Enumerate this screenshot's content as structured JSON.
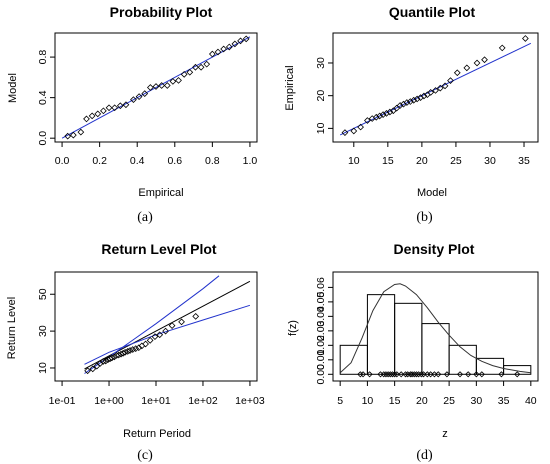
{
  "chart_data": [
    {
      "type": "scatter",
      "panel": "(a)",
      "title": "Probability Plot",
      "xlabel": "Empirical",
      "ylabel": "Model",
      "xlim": [
        0,
        1
      ],
      "ylim": [
        0,
        1
      ],
      "xticks": [
        0.0,
        0.2,
        0.4,
        0.6,
        0.8,
        1.0
      ],
      "xtick_labels": [
        "0.0",
        "0.2",
        "0.4",
        "0.6",
        "0.8",
        "1.0"
      ],
      "yticks": [
        0.0,
        0.4,
        0.8
      ],
      "ytick_labels": [
        "0.0",
        "0.4",
        "0.8"
      ],
      "reference_line": [
        [
          0,
          0
        ],
        [
          1,
          1
        ]
      ],
      "line_color": "#2233cc",
      "points": [
        [
          0.03,
          0.02
        ],
        [
          0.06,
          0.03
        ],
        [
          0.1,
          0.06
        ],
        [
          0.13,
          0.19
        ],
        [
          0.16,
          0.22
        ],
        [
          0.19,
          0.24
        ],
        [
          0.22,
          0.27
        ],
        [
          0.25,
          0.3
        ],
        [
          0.28,
          0.3
        ],
        [
          0.31,
          0.32
        ],
        [
          0.34,
          0.33
        ],
        [
          0.38,
          0.38
        ],
        [
          0.41,
          0.41
        ],
        [
          0.44,
          0.44
        ],
        [
          0.47,
          0.5
        ],
        [
          0.5,
          0.51
        ],
        [
          0.53,
          0.52
        ],
        [
          0.56,
          0.52
        ],
        [
          0.59,
          0.56
        ],
        [
          0.62,
          0.57
        ],
        [
          0.65,
          0.63
        ],
        [
          0.68,
          0.65
        ],
        [
          0.71,
          0.7
        ],
        [
          0.74,
          0.7
        ],
        [
          0.77,
          0.73
        ],
        [
          0.8,
          0.83
        ],
        [
          0.83,
          0.85
        ],
        [
          0.86,
          0.88
        ],
        [
          0.89,
          0.9
        ],
        [
          0.92,
          0.93
        ],
        [
          0.95,
          0.96
        ],
        [
          0.98,
          0.98
        ]
      ]
    },
    {
      "type": "scatter",
      "panel": "(b)",
      "title": "Quantile Plot",
      "xlabel": "Model",
      "ylabel": "Empirical",
      "xlim": [
        8,
        36
      ],
      "ylim": [
        7,
        38
      ],
      "xticks": [
        10,
        15,
        20,
        25,
        30,
        35
      ],
      "xtick_labels": [
        "10",
        "15",
        "20",
        "25",
        "30",
        "35"
      ],
      "yticks": [
        10,
        20,
        30
      ],
      "ytick_labels": [
        "10",
        "20",
        "30"
      ],
      "reference_line": [
        [
          8,
          8
        ],
        [
          36,
          36
        ]
      ],
      "line_color": "#2233cc",
      "points": [
        [
          8.7,
          8.7
        ],
        [
          10,
          9.2
        ],
        [
          11,
          10.4
        ],
        [
          12,
          12.4
        ],
        [
          12.7,
          13
        ],
        [
          13.3,
          13.4
        ],
        [
          13.8,
          13.8
        ],
        [
          14.3,
          14.2
        ],
        [
          14.8,
          14.6
        ],
        [
          15.3,
          15
        ],
        [
          15.8,
          15.4
        ],
        [
          16.3,
          16.2
        ],
        [
          16.8,
          17
        ],
        [
          17.3,
          17.4
        ],
        [
          17.8,
          17.9
        ],
        [
          18.3,
          18.2
        ],
        [
          18.8,
          18.6
        ],
        [
          19.3,
          19
        ],
        [
          19.8,
          19.4
        ],
        [
          20.3,
          19.9
        ],
        [
          20.8,
          20.3
        ],
        [
          21.3,
          21
        ],
        [
          22,
          21.6
        ],
        [
          22.7,
          22.3
        ],
        [
          23.4,
          23
        ],
        [
          24.2,
          24.6
        ],
        [
          25.2,
          27
        ],
        [
          26.6,
          28.5
        ],
        [
          28.1,
          30
        ],
        [
          29.2,
          31
        ],
        [
          31.8,
          34.6
        ],
        [
          35.2,
          37.5
        ]
      ]
    },
    {
      "type": "line",
      "panel": "(c)",
      "title": "Return Level Plot",
      "xlabel": "Return Period",
      "ylabel": "Return Level",
      "xscale": "log",
      "xlim": [
        0.1,
        1000
      ],
      "ylim": [
        5,
        60
      ],
      "xticks": [
        0.1,
        1,
        10,
        100,
        1000
      ],
      "xtick_labels": [
        "1e-01",
        "1e+00",
        "1e+01",
        "1e+02",
        "1e+03"
      ],
      "yticks": [
        10,
        30,
        50
      ],
      "ytick_labels": [
        "10",
        "30",
        "50"
      ],
      "series": [
        {
          "role": "estimate",
          "color": "#000000",
          "x": [
            0.3,
            1000
          ],
          "y": [
            9.5,
            57
          ]
        },
        {
          "role": "upper confidence bound",
          "color": "#2233cc",
          "x": [
            0.3,
            1,
            10,
            100,
            220
          ],
          "y": [
            7,
            16,
            34,
            53,
            60
          ]
        },
        {
          "role": "lower confidence bound",
          "color": "#2233cc",
          "x": [
            0.3,
            1,
            10,
            100,
            1000
          ],
          "y": [
            12,
            18.5,
            28,
            36,
            44
          ]
        }
      ],
      "points": [
        [
          0.35,
          8.5
        ],
        [
          0.45,
          9.5
        ],
        [
          0.55,
          11
        ],
        [
          0.65,
          12.5
        ],
        [
          0.75,
          13.5
        ],
        [
          0.85,
          13.8
        ],
        [
          0.95,
          14.5
        ],
        [
          1.05,
          15
        ],
        [
          1.15,
          15.5
        ],
        [
          1.3,
          16
        ],
        [
          1.45,
          16.8
        ],
        [
          1.6,
          17
        ],
        [
          1.8,
          17.5
        ],
        [
          2,
          18
        ],
        [
          2.2,
          18.5
        ],
        [
          2.5,
          19
        ],
        [
          2.8,
          19.5
        ],
        [
          3.2,
          20
        ],
        [
          3.7,
          20.5
        ],
        [
          4.3,
          21
        ],
        [
          5,
          22
        ],
        [
          6,
          23
        ],
        [
          7.5,
          25
        ],
        [
          9.5,
          27
        ],
        [
          12,
          28
        ],
        [
          16,
          30
        ],
        [
          22,
          33
        ],
        [
          35,
          35
        ],
        [
          70,
          38
        ]
      ]
    },
    {
      "type": "bar",
      "panel": "(d)",
      "title": "Density Plot",
      "xlabel": "z",
      "ylabel": "f(z)",
      "xlim": [
        5,
        40
      ],
      "ylim": [
        -0.002,
        0.068
      ],
      "xticks": [
        5,
        10,
        15,
        20,
        25,
        30,
        35,
        40
      ],
      "xtick_labels": [
        "5",
        "10",
        "15",
        "20",
        "25",
        "30",
        "35",
        "40"
      ],
      "yticks": [
        0.0,
        0.01,
        0.02,
        0.03,
        0.04,
        0.05,
        0.06
      ],
      "ytick_labels": [
        "0.00",
        "0.01",
        "0.02",
        "0.03",
        "0.04",
        "0.05",
        "0.06"
      ],
      "bins": [
        [
          5,
          10
        ],
        [
          10,
          15
        ],
        [
          15,
          20
        ],
        [
          20,
          25
        ],
        [
          25,
          30
        ],
        [
          30,
          35
        ],
        [
          35,
          40
        ]
      ],
      "values": [
        0.02,
        0.055,
        0.049,
        0.035,
        0.02,
        0.011,
        0.006
      ],
      "curve": {
        "x": [
          5,
          7,
          9,
          11,
          13,
          15,
          16,
          17,
          19,
          21,
          23,
          25,
          27,
          29,
          31,
          33,
          35,
          38,
          40
        ],
        "y": [
          0.001,
          0.008,
          0.025,
          0.044,
          0.057,
          0.062,
          0.0625,
          0.061,
          0.055,
          0.046,
          0.036,
          0.027,
          0.019,
          0.013,
          0.009,
          0.006,
          0.004,
          0.002,
          0.001
        ]
      },
      "rug": [
        8.7,
        9.2,
        10.4,
        12.4,
        13,
        13.4,
        13.8,
        14.2,
        14.6,
        15,
        15.4,
        16.2,
        17,
        17.4,
        17.9,
        18.2,
        18.6,
        19,
        19.4,
        19.9,
        20.3,
        21,
        21.6,
        22.3,
        23,
        24.6,
        27,
        28.5,
        30,
        31,
        34.6,
        37.5
      ]
    }
  ]
}
